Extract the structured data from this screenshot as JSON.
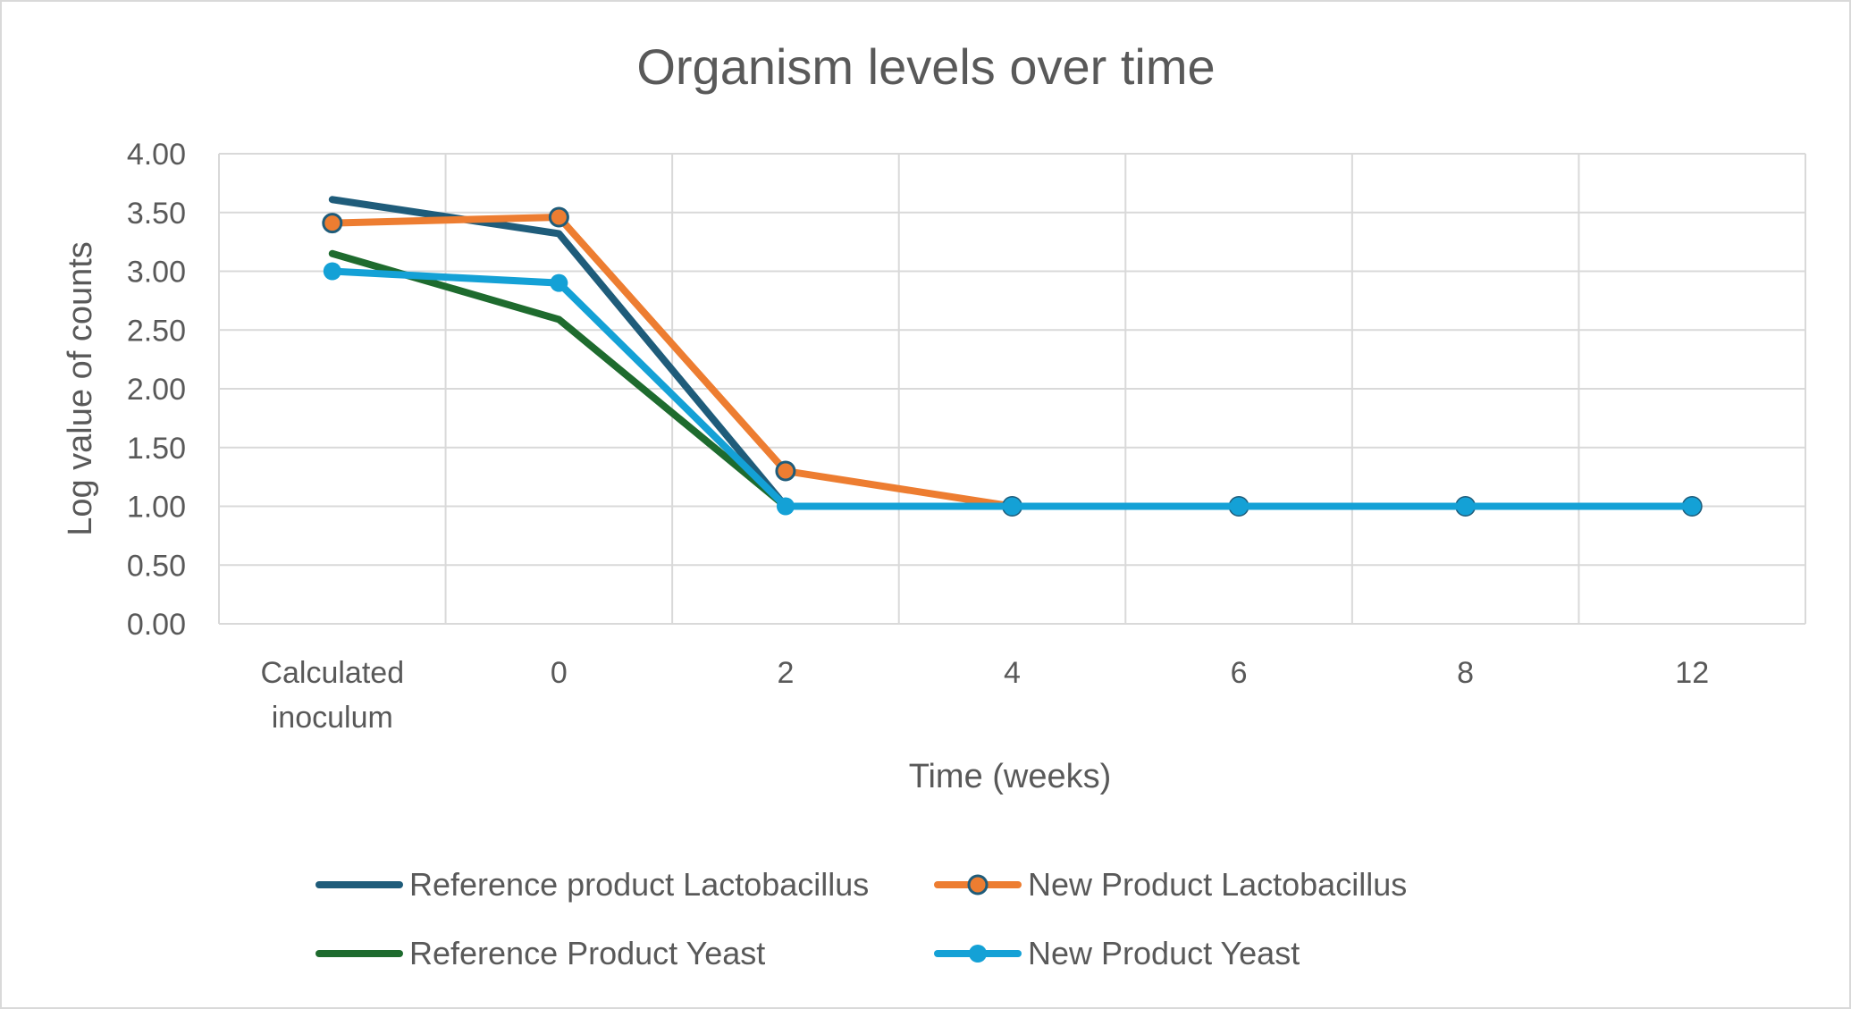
{
  "chart_data": {
    "type": "line",
    "title": "Organism levels over time",
    "xlabel": "Time (weeks)",
    "ylabel": "Log value of counts",
    "categories": [
      [
        "Calculated",
        "inoculum"
      ],
      [
        "0"
      ],
      [
        "2"
      ],
      [
        "4"
      ],
      [
        "6"
      ],
      [
        "8"
      ],
      [
        "12"
      ]
    ],
    "ylim": [
      0,
      4
    ],
    "yticks": [
      "0.00",
      "0.50",
      "1.00",
      "1.50",
      "2.00",
      "2.50",
      "3.00",
      "3.50",
      "4.00"
    ],
    "grid": true,
    "legend_position": "bottom",
    "series": [
      {
        "name": "Reference product Lactobacillus",
        "color": "#1f5c7a",
        "marker": "none",
        "values": [
          3.61,
          3.32,
          1.0,
          1.0,
          1.0,
          1.0,
          1.0
        ]
      },
      {
        "name": "New Product Lactobacillus",
        "color": "#ed7d31",
        "marker": "circle-outlined",
        "marker_edge": "#1f5c7a",
        "values": [
          3.41,
          3.46,
          1.3,
          1.0,
          1.0,
          1.0,
          1.0
        ]
      },
      {
        "name": "Reference Product Yeast",
        "color": "#1e6b2e",
        "marker": "none",
        "values": [
          3.15,
          2.59,
          1.0,
          1.0,
          1.0,
          1.0,
          1.0
        ]
      },
      {
        "name": "New Product Yeast",
        "color": "#14a1d6",
        "marker": "circle",
        "values": [
          3.0,
          2.9,
          1.0,
          1.0,
          1.0,
          1.0,
          1.0
        ]
      }
    ]
  }
}
